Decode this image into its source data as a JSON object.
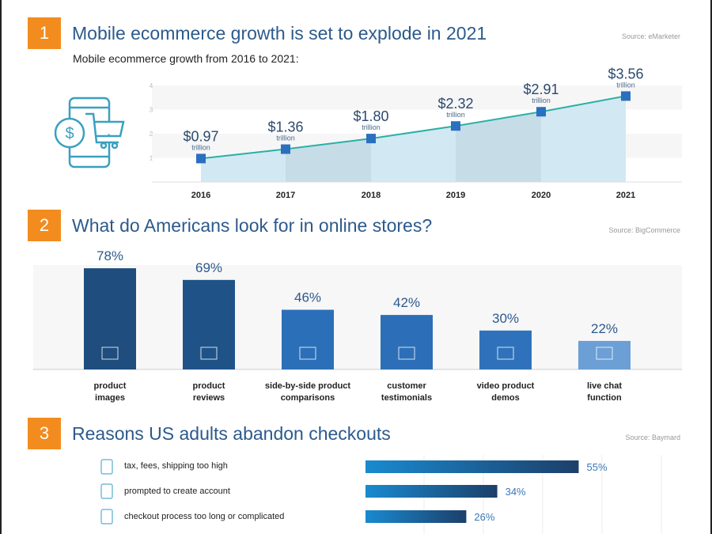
{
  "sections": [
    {
      "number": "1",
      "title": "Mobile ecommerce growth is set to explode in 2021",
      "source": "Source: eMarketer",
      "subtitle": "Mobile ecommerce growth from 2016 to 2021:"
    },
    {
      "number": "2",
      "title": "What do Americans look for in online stores?",
      "source": "Source: BigCommerce"
    },
    {
      "number": "3",
      "title": "Reasons US adults abandon checkouts",
      "source": "Source: Baymard"
    }
  ],
  "chart_data": [
    {
      "type": "line",
      "x": [
        "2016",
        "2017",
        "2018",
        "2019",
        "2020",
        "2021"
      ],
      "values": [
        0.97,
        1.36,
        1.8,
        2.32,
        2.91,
        3.56
      ],
      "labels": [
        "$0.97",
        "$1.36",
        "$1.80",
        "$2.32",
        "$2.91",
        "$3.56"
      ],
      "unit": "trillion",
      "yticks": [
        "1",
        "2",
        "3",
        "4"
      ],
      "ylim": [
        0,
        4
      ],
      "colors": {
        "line": "#2bb0a6",
        "marker": "#2a6fc0",
        "fill": "#d2e8f2"
      }
    },
    {
      "type": "bar",
      "categories": [
        [
          "product",
          "images"
        ],
        [
          "product",
          "reviews"
        ],
        [
          "side-by-side product",
          "comparisons"
        ],
        [
          "customer",
          "testimonials"
        ],
        [
          "video product",
          "demos"
        ],
        [
          "live chat",
          "function"
        ]
      ],
      "values": [
        78,
        69,
        46,
        42,
        30,
        22
      ],
      "labels": [
        "78%",
        "69%",
        "46%",
        "42%",
        "30%",
        "22%"
      ],
      "icons": [
        "image-icon",
        "review-bubble-icon",
        "comparison-icon",
        "testimonial-icon",
        "video-icon",
        "chat-icon"
      ],
      "colors": [
        "#1e4d7e",
        "#1f5388",
        "#2b6fb8",
        "#2c6fb8",
        "#2f72bb",
        "#6b9fd6"
      ]
    },
    {
      "type": "bar",
      "orientation": "horizontal",
      "categories": [
        "tax, fees, shipping too high",
        "prompted to create account",
        "checkout process too long or complicated"
      ],
      "values": [
        55,
        34,
        26
      ],
      "labels": [
        "55%",
        "34%",
        "26%"
      ],
      "icons": [
        "tax-receipt-icon",
        "account-icon",
        "flowchart-icon"
      ]
    }
  ]
}
